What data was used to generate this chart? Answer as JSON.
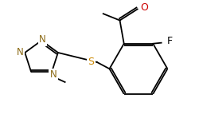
{
  "bg_color": "#ffffff",
  "line_color": "#000000",
  "atom_colors": {
    "N": "#8B6914",
    "O": "#cc0000",
    "S": "#cc8800",
    "F": "#000000",
    "C": "#000000"
  },
  "lw": 1.3
}
